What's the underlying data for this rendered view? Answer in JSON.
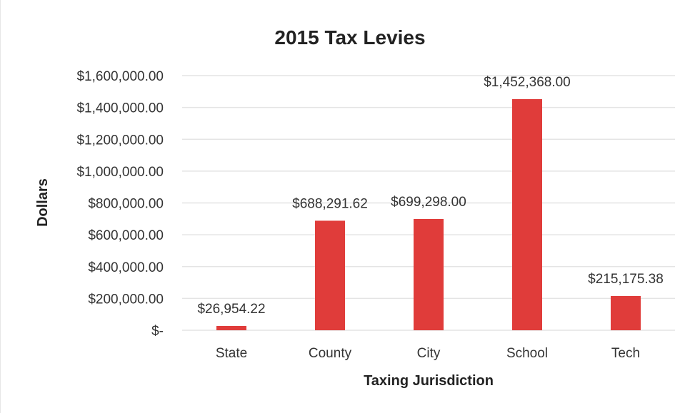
{
  "chart_data": {
    "type": "bar",
    "title": "2015 Tax Levies",
    "xlabel": "Taxing Jurisdiction",
    "ylabel": "Dollars",
    "categories": [
      "State",
      "County",
      "City",
      "School",
      "Tech"
    ],
    "values": [
      26954.22,
      688291.62,
      699298.0,
      1452368.0,
      215175.38
    ],
    "data_labels": [
      "$26,954.22",
      "$688,291.62",
      "$699,298.00",
      "$1,452,368.00",
      "$215,175.38"
    ],
    "ylim": [
      0,
      1600000
    ],
    "yticks": [
      0,
      200000,
      400000,
      600000,
      800000,
      1000000,
      1200000,
      1400000,
      1600000
    ],
    "ytick_labels": [
      "$-",
      "$200,000.00",
      "$400,000.00",
      "$600,000.00",
      "$800,000.00",
      "$1,000,000.00",
      "$1,200,000.00",
      "$1,400,000.00",
      "$1,600,000.00"
    ],
    "grid": true,
    "legend": "none",
    "bar_color": "#e03c3a",
    "grid_color": "#e4e4e4"
  }
}
